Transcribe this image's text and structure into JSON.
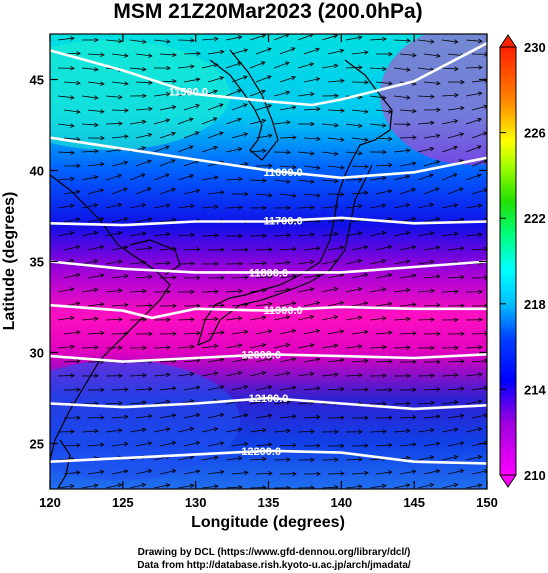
{
  "chart_data": {
    "type": "heatmap",
    "title": "MSM 21Z20Mar2023 (200.0hPa)",
    "xlabel": "Longitude (degrees)",
    "ylabel": "Latitude  (degrees)",
    "xlim": [
      120,
      150
    ],
    "ylim": [
      22.5,
      47.5
    ],
    "x_ticks": [
      120,
      125,
      130,
      135,
      140,
      145,
      150
    ],
    "y_ticks": [
      25,
      30,
      35,
      40,
      45
    ],
    "colorbar": {
      "min": 210,
      "max": 230,
      "ticks": [
        210,
        214,
        218,
        222,
        226,
        230
      ],
      "colors": [
        "#ff00ff",
        "#1e00b4",
        "#0000ff",
        "#0080ff",
        "#00ffff",
        "#00ff80",
        "#40ff00",
        "#ffff00",
        "#ff8000",
        "#ff2000"
      ]
    },
    "contours": [
      {
        "label": "11500.0",
        "points": [
          [
            120,
            46.6
          ],
          [
            125,
            45.5
          ],
          [
            130,
            44.2
          ],
          [
            135,
            43.8
          ],
          [
            138,
            43.6
          ],
          [
            140,
            43.9
          ],
          [
            145,
            44.9
          ],
          [
            150,
            47.0
          ]
        ]
      },
      {
        "label": "11600.0",
        "points": [
          [
            120,
            41.8
          ],
          [
            125,
            41.2
          ],
          [
            130,
            40.6
          ],
          [
            135,
            40.0
          ],
          [
            140,
            39.6
          ],
          [
            145,
            39.9
          ],
          [
            150,
            40.7
          ]
        ]
      },
      {
        "label": "11700.0",
        "points": [
          [
            120,
            37.1
          ],
          [
            125,
            37.0
          ],
          [
            130,
            37.2
          ],
          [
            135,
            37.2
          ],
          [
            140,
            37.4
          ],
          [
            145,
            37.1
          ],
          [
            150,
            37.2
          ]
        ]
      },
      {
        "label": "11800.0",
        "points": [
          [
            120,
            35.0
          ],
          [
            125,
            34.6
          ],
          [
            130,
            34.4
          ],
          [
            135,
            34.4
          ],
          [
            140,
            34.4
          ],
          [
            145,
            34.7
          ],
          [
            150,
            35.0
          ]
        ]
      },
      {
        "label": "11900.0",
        "points": [
          [
            120,
            32.6
          ],
          [
            125,
            32.3
          ],
          [
            127,
            31.9
          ],
          [
            130,
            32.4
          ],
          [
            135,
            32.3
          ],
          [
            140,
            32.5
          ],
          [
            145,
            32.4
          ],
          [
            150,
            32.4
          ]
        ]
      },
      {
        "label": "12000.0",
        "points": [
          [
            120,
            29.8
          ],
          [
            125,
            29.5
          ],
          [
            130,
            29.7
          ],
          [
            135,
            29.9
          ],
          [
            140,
            29.8
          ],
          [
            145,
            29.7
          ],
          [
            150,
            29.9
          ]
        ]
      },
      {
        "label": "12100.0",
        "points": [
          [
            120,
            27.2
          ],
          [
            125,
            27.0
          ],
          [
            130,
            27.2
          ],
          [
            135,
            27.5
          ],
          [
            140,
            27.2
          ],
          [
            145,
            26.9
          ],
          [
            150,
            27.1
          ]
        ]
      },
      {
        "label": "12200.0",
        "points": [
          [
            120,
            24.0
          ],
          [
            125,
            24.2
          ],
          [
            130,
            24.4
          ],
          [
            135,
            24.6
          ],
          [
            140,
            24.5
          ],
          [
            145,
            24.0
          ],
          [
            150,
            23.9
          ]
        ]
      }
    ]
  },
  "footer": {
    "line1": "Drawing by DCL (https://www.gfd-dennou.org/library/dcl/)",
    "line2": "Data from http://database.rish.kyoto-u.ac.jp/arch/jmadata/"
  }
}
